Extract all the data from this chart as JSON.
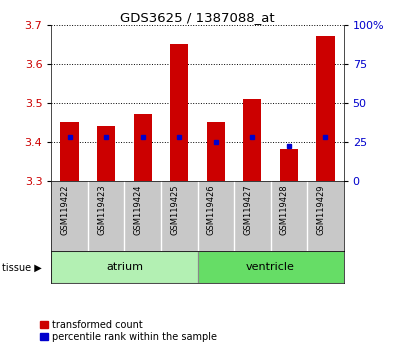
{
  "title": "GDS3625 / 1387088_at",
  "samples": [
    "GSM119422",
    "GSM119423",
    "GSM119424",
    "GSM119425",
    "GSM119426",
    "GSM119427",
    "GSM119428",
    "GSM119429"
  ],
  "transformed_counts": [
    3.45,
    3.44,
    3.47,
    3.65,
    3.45,
    3.51,
    3.38,
    3.67
  ],
  "percentile_ranks": [
    28,
    28,
    28,
    28,
    25,
    28,
    22,
    28
  ],
  "ymin": 3.3,
  "ymax": 3.7,
  "yticks": [
    3.3,
    3.4,
    3.5,
    3.6,
    3.7
  ],
  "right_yticks": [
    0,
    25,
    50,
    75,
    100
  ],
  "bar_color": "#cc0000",
  "dot_color": "#0000cc",
  "bar_width": 0.5,
  "legend_items": [
    {
      "color": "#cc0000",
      "label": "transformed count"
    },
    {
      "color": "#0000cc",
      "label": "percentile rank within the sample"
    }
  ],
  "ylabel_left_color": "#cc0000",
  "ylabel_right_color": "#0000cc",
  "atrium_color": "#b3f0b3",
  "ventricle_color": "#66dd66"
}
